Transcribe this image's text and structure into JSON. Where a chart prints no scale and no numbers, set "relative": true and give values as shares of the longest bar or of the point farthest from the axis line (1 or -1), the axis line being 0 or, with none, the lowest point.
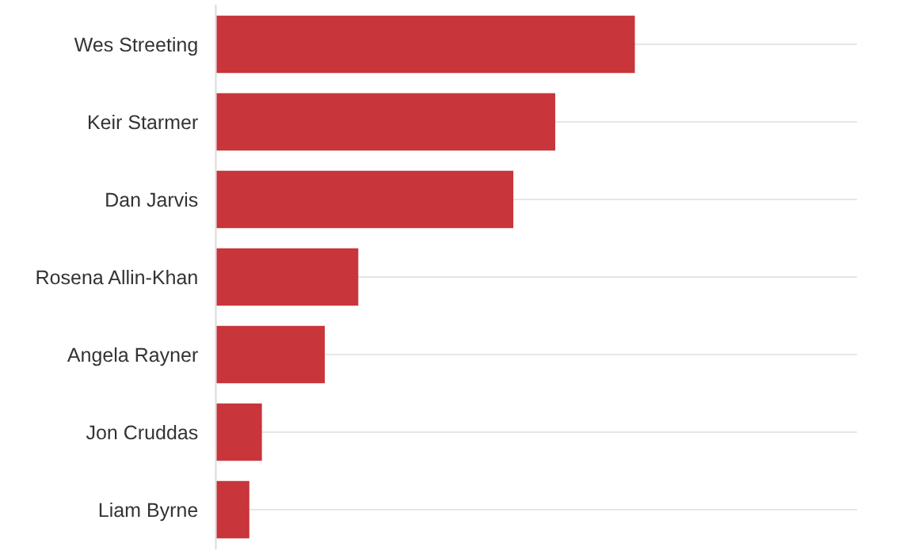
{
  "chart_data": {
    "type": "bar",
    "orientation": "horizontal",
    "relative": true,
    "categories": [
      "Wes Streeting",
      "Keir Starmer",
      "Dan Jarvis",
      "Rosena Allin-Khan",
      "Angela Rayner",
      "Jon Cruddas",
      "Liam Byrne"
    ],
    "values": [
      1,
      0.81,
      0.71,
      0.34,
      0.26,
      0.11,
      0.08
    ],
    "color": "#c8353a",
    "grid": "y"
  }
}
